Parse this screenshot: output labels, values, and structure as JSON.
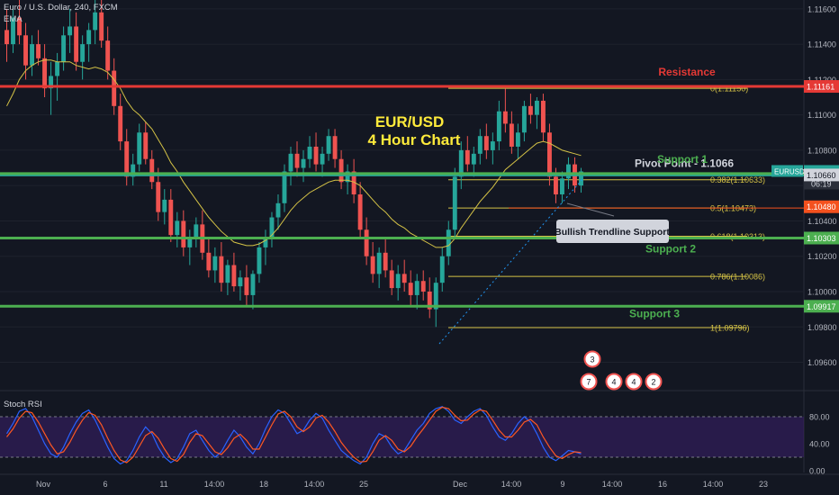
{
  "header": {
    "symbol_line": "Euro / U.S. Dollar, 240, FXCM",
    "indicator": "EMA"
  },
  "colors": {
    "background": "#131722",
    "up": "#26a69a",
    "down": "#ef5350",
    "ema": "#d4c246",
    "resistance": "#e53935",
    "support": "#4caf50",
    "pivot": "#26a69a",
    "fib": "#d4c246",
    "rsi_k": "#2962ff",
    "rsi_d": "#ff5722",
    "rsi_band": "#3b1f6b"
  },
  "chart_data": {
    "type": "candlestick",
    "title": "EUR/USD",
    "subtitle": "4 Hour Chart",
    "ylim": [
      1.0945,
      1.1165
    ],
    "y_ticks": [
      "1.11600",
      "1.11400",
      "1.11200",
      "1.11000",
      "1.10800",
      "1.10600",
      "1.10400",
      "1.10200",
      "1.10000",
      "1.09800",
      "1.09600"
    ],
    "x_ticks": [
      "Nov",
      "6",
      "11",
      "14:00",
      "18",
      "14:00",
      "25",
      "Dec",
      "14:00",
      "9",
      "14:00",
      "16",
      "14:00",
      "23"
    ],
    "levels": [
      {
        "label": "Resistance",
        "price": 1.11161,
        "tag": "1.11161",
        "kind": "resistance"
      },
      {
        "label": "Pivot Point - 1.1066",
        "price": 1.1066,
        "tag": "",
        "kind": "pivot"
      },
      {
        "label": "Support 1",
        "price": 1.10668,
        "tag": "1.10668",
        "kind": "support"
      },
      {
        "label": "Support 2",
        "price": 1.10303,
        "tag": "1.10303",
        "kind": "support"
      },
      {
        "label": "Support 3",
        "price": 1.09917,
        "tag": "1.09917",
        "kind": "support"
      }
    ],
    "fibonacci": [
      {
        "label": "0(1.11150)",
        "price": 1.1115
      },
      {
        "label": "0.382(1.10633)",
        "price": 1.10633
      },
      {
        "label": "0.5(1.10473)",
        "price": 1.10473
      },
      {
        "label": "0.618(1.10313)",
        "price": 1.10313
      },
      {
        "label": "0.786(1.10086)",
        "price": 1.10086
      },
      {
        "label": "1(1.09796)",
        "price": 1.09796
      }
    ],
    "price_tags": [
      {
        "label": "EURUSD",
        "price": 1.1068,
        "text": "1.10680",
        "countdown": "06:19",
        "kind": "current"
      },
      {
        "label": "",
        "price": 1.1066,
        "text": "1.10660",
        "kind": "gray"
      },
      {
        "label": "",
        "price": 1.1048,
        "text": "1.10480",
        "kind": "red"
      }
    ],
    "annotation": "Bullish Trendline Support",
    "event_badges": [
      "3",
      "7",
      "4",
      "4",
      "2"
    ],
    "series": [
      {
        "name": "EURUSD",
        "ohlc": [
          [
            1.1148,
            1.116,
            1.113,
            1.114
          ],
          [
            1.114,
            1.1162,
            1.1135,
            1.1155
          ],
          [
            1.1155,
            1.1165,
            1.114,
            1.1145
          ],
          [
            1.1145,
            1.1152,
            1.112,
            1.1128
          ],
          [
            1.1128,
            1.1145,
            1.1122,
            1.114
          ],
          [
            1.114,
            1.1148,
            1.1128,
            1.1132
          ],
          [
            1.1132,
            1.114,
            1.111,
            1.1115
          ],
          [
            1.1115,
            1.113,
            1.11,
            1.1122
          ],
          [
            1.1122,
            1.1135,
            1.1108,
            1.113
          ],
          [
            1.113,
            1.115,
            1.1125,
            1.1145
          ],
          [
            1.1145,
            1.116,
            1.1135,
            1.115
          ],
          [
            1.115,
            1.1158,
            1.1125,
            1.113
          ],
          [
            1.113,
            1.1145,
            1.112,
            1.114
          ],
          [
            1.114,
            1.1152,
            1.113,
            1.1148
          ],
          [
            1.1148,
            1.1165,
            1.114,
            1.1158
          ],
          [
            1.1158,
            1.1165,
            1.1138,
            1.1142
          ],
          [
            1.1142,
            1.115,
            1.112,
            1.1125
          ],
          [
            1.1125,
            1.1132,
            1.11,
            1.1105
          ],
          [
            1.1105,
            1.1112,
            1.108,
            1.1085
          ],
          [
            1.1085,
            1.1092,
            1.106,
            1.1065
          ],
          [
            1.1065,
            1.1078,
            1.106,
            1.1072
          ],
          [
            1.1072,
            1.1095,
            1.1068,
            1.109
          ],
          [
            1.109,
            1.1096,
            1.1072,
            1.1075
          ],
          [
            1.1075,
            1.108,
            1.1058,
            1.1062
          ],
          [
            1.1062,
            1.107,
            1.104,
            1.1045
          ],
          [
            1.1045,
            1.1058,
            1.1038,
            1.1052
          ],
          [
            1.1052,
            1.1058,
            1.1028,
            1.1032
          ],
          [
            1.1032,
            1.1045,
            1.1025,
            1.104
          ],
          [
            1.104,
            1.1046,
            1.102,
            1.1025
          ],
          [
            1.1025,
            1.1035,
            1.1015,
            1.103
          ],
          [
            1.103,
            1.1042,
            1.1025,
            1.1038
          ],
          [
            1.1038,
            1.1046,
            1.1018,
            1.1022
          ],
          [
            1.1022,
            1.103,
            1.1008,
            1.1012
          ],
          [
            1.1012,
            1.1025,
            1.1005,
            1.102
          ],
          [
            1.102,
            1.1028,
            1.1,
            1.1005
          ],
          [
            1.1005,
            1.1018,
            1.0998,
            1.1015
          ],
          [
            1.1015,
            1.1022,
            1.1,
            1.1003
          ],
          [
            1.1003,
            1.1012,
            1.0995,
            1.1008
          ],
          [
            1.1008,
            1.1015,
            1.0992,
            1.0998
          ],
          [
            1.0998,
            1.1012,
            1.099,
            1.101
          ],
          [
            1.101,
            1.1028,
            1.1005,
            1.1025
          ],
          [
            1.1025,
            1.1035,
            1.1015,
            1.103
          ],
          [
            1.103,
            1.1045,
            1.1025,
            1.1042
          ],
          [
            1.1042,
            1.1055,
            1.1035,
            1.105
          ],
          [
            1.105,
            1.1072,
            1.1045,
            1.1068
          ],
          [
            1.1068,
            1.1082,
            1.106,
            1.1078
          ],
          [
            1.1078,
            1.1085,
            1.1065,
            1.107
          ],
          [
            1.107,
            1.108,
            1.1062,
            1.1075
          ],
          [
            1.1075,
            1.1088,
            1.107,
            1.1082
          ],
          [
            1.1082,
            1.109,
            1.1068,
            1.1072
          ],
          [
            1.1072,
            1.1082,
            1.1065,
            1.1078
          ],
          [
            1.1078,
            1.1092,
            1.1074,
            1.1088
          ],
          [
            1.1088,
            1.1092,
            1.107,
            1.1075
          ],
          [
            1.1075,
            1.108,
            1.1058,
            1.1062
          ],
          [
            1.1062,
            1.1072,
            1.1055,
            1.1068
          ],
          [
            1.1068,
            1.1075,
            1.105,
            1.1055
          ],
          [
            1.1055,
            1.1062,
            1.103,
            1.1035
          ],
          [
            1.1035,
            1.1042,
            1.1015,
            1.102
          ],
          [
            1.102,
            1.1028,
            1.1005,
            1.101
          ],
          [
            1.101,
            1.1025,
            1.1002,
            1.1022
          ],
          [
            1.1022,
            1.103,
            1.1008,
            1.1012
          ],
          [
            1.1012,
            1.1018,
            1.0998,
            1.1002
          ],
          [
            1.1002,
            1.1015,
            1.0995,
            1.101
          ],
          [
            1.101,
            1.1018,
            1.1,
            1.1005
          ],
          [
            1.1005,
            1.1012,
            1.0992,
            1.0998
          ],
          [
            1.0998,
            1.101,
            1.099,
            1.1006
          ],
          [
            1.1006,
            1.1012,
            1.0995,
            1.1
          ],
          [
            1.1,
            1.1008,
            1.0985,
            1.099
          ],
          [
            1.099,
            1.1008,
            1.098,
            1.1005
          ],
          [
            1.1005,
            1.1025,
            1.1,
            1.102
          ],
          [
            1.102,
            1.104,
            1.1015,
            1.1035
          ],
          [
            1.1035,
            1.107,
            1.103,
            1.1065
          ],
          [
            1.1065,
            1.1085,
            1.1058,
            1.108
          ],
          [
            1.108,
            1.1088,
            1.1068,
            1.1072
          ],
          [
            1.1072,
            1.1082,
            1.1065,
            1.1078
          ],
          [
            1.1078,
            1.1092,
            1.1072,
            1.1088
          ],
          [
            1.1088,
            1.1095,
            1.1075,
            1.108
          ],
          [
            1.108,
            1.109,
            1.1072,
            1.1085
          ],
          [
            1.1085,
            1.1108,
            1.108,
            1.1102
          ],
          [
            1.1102,
            1.1115,
            1.109,
            1.1095
          ],
          [
            1.1095,
            1.1102,
            1.1078,
            1.1082
          ],
          [
            1.1082,
            1.1095,
            1.1075,
            1.109
          ],
          [
            1.109,
            1.1108,
            1.1085,
            1.1105
          ],
          [
            1.1105,
            1.1112,
            1.1095,
            1.11
          ],
          [
            1.11,
            1.111,
            1.1092,
            1.1108
          ],
          [
            1.1108,
            1.1112,
            1.1085,
            1.109
          ],
          [
            1.109,
            1.1095,
            1.106,
            1.1065
          ],
          [
            1.1065,
            1.107,
            1.105,
            1.1055
          ],
          [
            1.1055,
            1.1068,
            1.105,
            1.1064
          ],
          [
            1.1064,
            1.1076,
            1.1058,
            1.1072
          ],
          [
            1.1072,
            1.1076,
            1.1056,
            1.106
          ],
          [
            1.106,
            1.107,
            1.1056,
            1.1068
          ]
        ]
      },
      {
        "name": "EMA",
        "values": [
          1.1105,
          1.1112,
          1.112,
          1.1125,
          1.1128,
          1.113,
          1.1131,
          1.1131,
          1.113,
          1.113,
          1.113,
          1.1128,
          1.1127,
          1.1126,
          1.1127,
          1.1126,
          1.1124,
          1.112,
          1.1115,
          1.1108,
          1.1103,
          1.11,
          1.1096,
          1.1092,
          1.1086,
          1.108,
          1.1073,
          1.1068,
          1.1062,
          1.1057,
          1.1052,
          1.1047,
          1.1042,
          1.1038,
          1.1034,
          1.1031,
          1.1028,
          1.1027,
          1.1026,
          1.1026,
          1.1027,
          1.1029,
          1.1032,
          1.1036,
          1.1041,
          1.1046,
          1.105,
          1.1053,
          1.1056,
          1.1058,
          1.106,
          1.1062,
          1.1063,
          1.1063,
          1.1063,
          1.1062,
          1.106,
          1.1056,
          1.1052,
          1.1048,
          1.1045,
          1.1041,
          1.1038,
          1.1036,
          1.1033,
          1.1031,
          1.1029,
          1.1027,
          1.1025,
          1.1025,
          1.1026,
          1.103,
          1.1036,
          1.1041,
          1.1046,
          1.1051,
          1.1055,
          1.1059,
          1.1064,
          1.1069,
          1.1072,
          1.1075,
          1.1078,
          1.1081,
          1.1084,
          1.1085,
          1.1084,
          1.1082,
          1.108,
          1.1079,
          1.1078,
          1.1077
        ]
      }
    ],
    "rsi": {
      "title": "Stoch RSI",
      "ylim": [
        0,
        100
      ],
      "y_ticks": [
        "80.00",
        "40.00",
        "0.00"
      ],
      "band": [
        20,
        80
      ],
      "k": [
        55,
        70,
        88,
        92,
        80,
        60,
        40,
        25,
        20,
        35,
        55,
        72,
        85,
        90,
        75,
        55,
        35,
        18,
        10,
        15,
        30,
        50,
        65,
        55,
        35,
        20,
        12,
        18,
        35,
        55,
        60,
        45,
        30,
        20,
        28,
        45,
        60,
        50,
        35,
        25,
        40,
        62,
        80,
        90,
        85,
        70,
        55,
        60,
        75,
        85,
        78,
        60,
        45,
        30,
        22,
        15,
        10,
        20,
        40,
        55,
        50,
        35,
        25,
        30,
        45,
        60,
        70,
        85,
        92,
        95,
        88,
        75,
        70,
        80,
        88,
        92,
        82,
        65,
        50,
        45,
        55,
        70,
        80,
        72,
        55,
        35,
        20,
        15,
        22,
        30,
        28,
        25
      ],
      "d": [
        50,
        62,
        78,
        88,
        86,
        72,
        55,
        38,
        25,
        28,
        42,
        60,
        75,
        86,
        82,
        68,
        48,
        30,
        16,
        12,
        20,
        36,
        52,
        58,
        48,
        32,
        18,
        14,
        24,
        42,
        55,
        52,
        40,
        28,
        24,
        34,
        48,
        54,
        45,
        32,
        32,
        50,
        68,
        84,
        88,
        80,
        65,
        58,
        65,
        78,
        82,
        72,
        58,
        42,
        30,
        20,
        13,
        14,
        28,
        45,
        52,
        45,
        32,
        28,
        36,
        50,
        62,
        75,
        88,
        94,
        92,
        82,
        74,
        75,
        84,
        90,
        88,
        75,
        60,
        50,
        50,
        60,
        72,
        76,
        68,
        50,
        35,
        22,
        18,
        24,
        28,
        27
      ]
    }
  }
}
